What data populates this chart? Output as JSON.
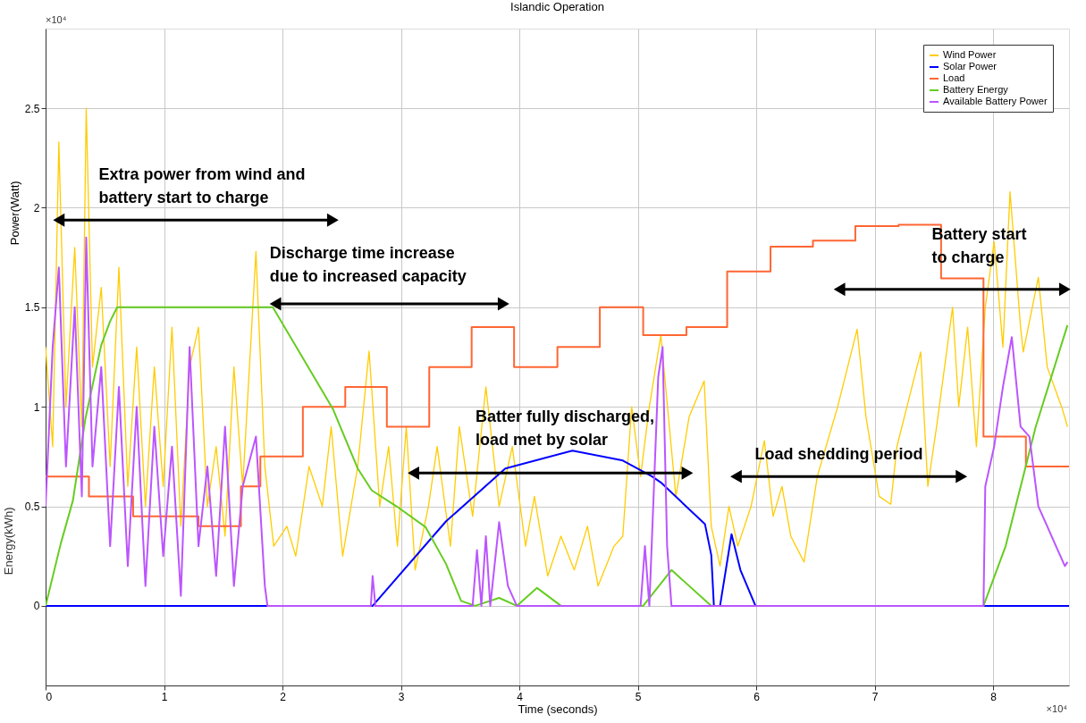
{
  "chart_data": {
    "type": "line",
    "title": "Islandic Operation",
    "xlabel": "Time (seconds)",
    "ylabel": "Power(Watt)",
    "xlim": [
      0,
      8.64
    ],
    "xticks": [
      0,
      1,
      2,
      3,
      4,
      5,
      6,
      7,
      8
    ],
    "ylim": [
      -0.4,
      2.9
    ],
    "yticks": [
      0,
      0.5,
      1,
      1.5,
      2,
      2.5
    ],
    "grid": true,
    "legend": "top right",
    "series": [
      {
        "name": "Wind Power",
        "color": "#ffcc00",
        "x": [
          0,
          0.06,
          0.112,
          0.172,
          0.246,
          0.306,
          0.343,
          0.396,
          0.47,
          0.545,
          0.619,
          0.694,
          0.769,
          0.843,
          0.918,
          0.993,
          1.067,
          1.142,
          1.216,
          1.291,
          1.366,
          1.44,
          1.515,
          1.59,
          1.664,
          1.776,
          1.851,
          1.926,
          2.037,
          2.112,
          2.224,
          2.336,
          2.411,
          2.508,
          2.635,
          2.731,
          2.821,
          2.896,
          2.97,
          3.045,
          3.12,
          3.232,
          3.306,
          3.418,
          3.493,
          3.605,
          3.717,
          3.829,
          3.94,
          4.052,
          4.127,
          4.239,
          4.351,
          4.463,
          4.575,
          4.664,
          4.799,
          4.873,
          4.948,
          5.023,
          5.097,
          5.194,
          5.321,
          5.433,
          5.56,
          5.62,
          5.694,
          5.769,
          5.844,
          5.956,
          6.068,
          6.142,
          6.217,
          6.291,
          6.403,
          6.515,
          6.687,
          6.851,
          6.926,
          7.037,
          7.135,
          7.187,
          7.388,
          7.448,
          7.522,
          7.657,
          7.709,
          7.784,
          7.858,
          7.933,
          8.008,
          8.082,
          8.142,
          8.231,
          8.254,
          8.381,
          8.456,
          8.583,
          8.627
        ],
        "values": [
          1.3,
          0.8,
          2.33,
          1,
          1.8,
          0.9,
          2.5,
          1.2,
          1.6,
          0.7,
          1.7,
          0.6,
          1.3,
          0.5,
          1.2,
          0.6,
          1.4,
          0.4,
          1.2,
          1.4,
          0.5,
          0.8,
          0.35,
          1.2,
          0.6,
          1.78,
          0.7,
          0.3,
          0.4,
          0.25,
          0.7,
          0.5,
          0.9,
          0.25,
          0.7,
          1.28,
          0.5,
          0.8,
          0.3,
          0.9,
          0.18,
          0.5,
          0.8,
          0.3,
          0.9,
          0.45,
          1.1,
          0.5,
          0.8,
          0.3,
          0.55,
          0.15,
          0.35,
          0.18,
          0.4,
          0.1,
          0.3,
          0.35,
          1,
          0.65,
          1,
          1.36,
          0.55,
          0.95,
          1.13,
          0.4,
          0.2,
          0.5,
          0.3,
          0.5,
          0.83,
          0.45,
          0.6,
          0.35,
          0.22,
          0.65,
          1,
          1.39,
          0.95,
          0.55,
          0.51,
          0.8,
          1.275,
          0.6,
          0.9,
          1.5,
          1,
          1.4,
          0.8,
          1.5,
          1.83,
          1.3,
          2.08,
          1.4,
          1.275,
          1.65,
          1.2,
          0.99,
          0.9
        ]
      },
      {
        "name": "Solar Power",
        "color": "#0000ff",
        "x": [
          0,
          2.761,
          3.381,
          3.881,
          4.448,
          4.873,
          5.12,
          5.194,
          5.567,
          5.62,
          5.642,
          5.694,
          5.791,
          5.866,
          5.993,
          8.64
        ],
        "values": [
          0,
          0,
          0.425,
          0.69,
          0.78,
          0.73,
          0.65,
          0.62,
          0.41,
          0.255,
          0,
          0,
          0.36,
          0.18,
          0,
          0
        ]
      },
      {
        "name": "Load",
        "color": "#ff6633",
        "type": "step",
        "x": [
          0,
          0.366,
          0.739,
          1.291,
          1.649,
          1.813,
          2.172,
          2.53,
          2.881,
          3.239,
          3.597,
          3.955,
          4.321,
          4.679,
          5.045,
          5.41,
          5.754,
          6.12,
          6.478,
          6.836,
          7.202,
          7.56,
          7.918,
          8.276,
          8.64
        ],
        "values": [
          0.65,
          0.55,
          0.45,
          0.4,
          0.6,
          0.75,
          1,
          1.1,
          0.9,
          1.2,
          1.4,
          1.2,
          1.3,
          1.5,
          1.36,
          1.4,
          1.68,
          1.805,
          1.835,
          1.908,
          1.915,
          1.645,
          0.85,
          0.7,
          0.7
        ]
      },
      {
        "name": "Battery Energy",
        "color": "#66cc22",
        "x": [
          0,
          0.127,
          0.231,
          0.336,
          0.47,
          0.545,
          0.605,
          1.918,
          2.157,
          2.425,
          2.635,
          2.754,
          2.963,
          3.209,
          3.381,
          3.508,
          3.627,
          3.829,
          3.978,
          4.149,
          4.351,
          5.045,
          5.284,
          5.62,
          7.918,
          8.105,
          8.359,
          8.627
        ],
        "values": [
          0,
          0.31,
          0.53,
          0.94,
          1.31,
          1.43,
          1.5,
          1.5,
          1.26,
          0.99,
          0.69,
          0.58,
          0.5,
          0.395,
          0.21,
          0.025,
          0,
          0.04,
          0,
          0.09,
          0,
          0,
          0.18,
          0,
          0,
          0.3,
          0.9,
          1.41
        ]
      },
      {
        "name": "Available Battery Power",
        "color": "#bb55ff",
        "x": [
          0,
          0.06,
          0.112,
          0.172,
          0.246,
          0.306,
          0.343,
          0.396,
          0.47,
          0.545,
          0.619,
          0.694,
          0.769,
          0.843,
          0.918,
          0.993,
          1.067,
          1.142,
          1.216,
          1.291,
          1.366,
          1.44,
          1.515,
          1.59,
          1.664,
          1.776,
          1.851,
          1.873,
          2.746,
          2.761,
          2.784,
          3.605,
          3.642,
          3.679,
          3.717,
          3.754,
          3.829,
          3.903,
          3.978,
          5.023,
          5.06,
          5.097,
          5.172,
          5.209,
          5.247,
          5.284,
          7.918,
          7.933,
          8.008,
          8.082,
          8.157,
          8.231,
          8.306,
          8.381,
          8.456,
          8.53,
          8.605,
          8.627
        ],
        "values": [
          0.5,
          1.3,
          1.7,
          0.7,
          1.5,
          0.55,
          1.85,
          0.7,
          1.2,
          0.3,
          1.1,
          0.2,
          1,
          0.1,
          0.9,
          0.25,
          0.8,
          0.05,
          1.3,
          0.3,
          0.7,
          0.15,
          0.9,
          0.1,
          0.6,
          0.85,
          0.1,
          0,
          0,
          0.15,
          0,
          0,
          0.28,
          0,
          0.35,
          0,
          0.42,
          0.1,
          0,
          0,
          0.3,
          0,
          1.15,
          1.3,
          0.3,
          0,
          0,
          0.6,
          0.8,
          1.1,
          1.35,
          0.9,
          0.85,
          0.5,
          0.4,
          0.3,
          0.2,
          0.22
        ]
      },
      {
        "color": "#000000",
        "marker": "triangle",
        "x": [
          0.112,
          2.425
        ],
        "values": [
          1.938,
          1.938
        ]
      },
      {
        "color": "#000000",
        "marker": "triangle",
        "x": [
          1.94,
          3.866
        ],
        "values": [
          1.517,
          1.517
        ]
      },
      {
        "color": "#000000",
        "marker": "triangle",
        "x": [
          3.105,
          5.418
        ],
        "values": [
          0.667,
          0.667
        ]
      },
      {
        "color": "#000000",
        "marker": "triangle",
        "x": [
          5.829,
          7.732
        ],
        "values": [
          0.65,
          0.65
        ]
      },
      {
        "color": "#000000",
        "marker": "triangle",
        "x": [
          6.702,
          8.605
        ],
        "values": [
          1.59,
          1.59
        ]
      }
    ],
    "annotations": [
      "×10⁴",
      "×10⁴",
      "Energy(kWh)",
      "Extra power from wind and\nbattery start to charge",
      "Discharge time increase\ndue to increased capacity",
      "Batter fully discharged,\nload met by solar",
      "Load shedding period",
      "Battery start\nto charge"
    ]
  }
}
